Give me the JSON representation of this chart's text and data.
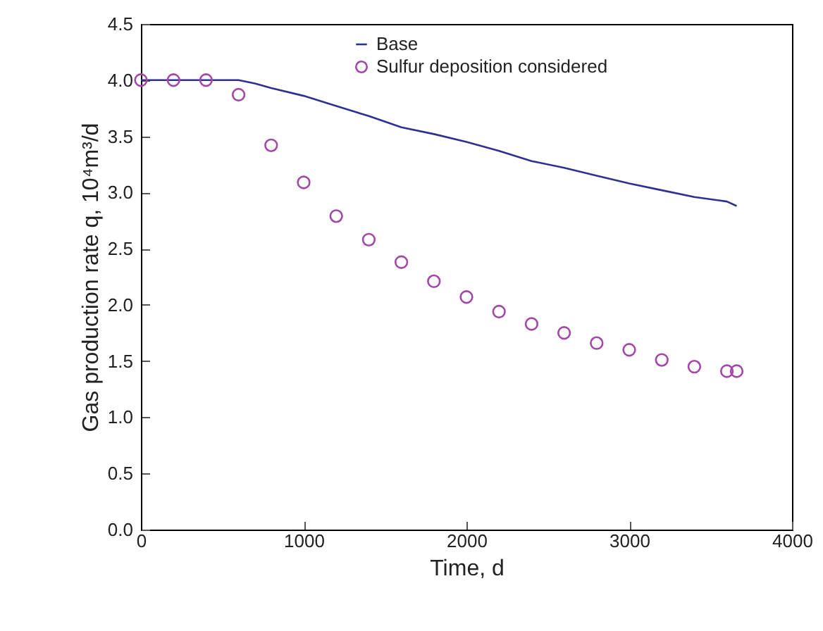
{
  "chart_data": {
    "type": "line",
    "xlabel": "Time, d",
    "ylabel": "Gas production rate q, 10⁴m³/d",
    "xlim": [
      0,
      4000
    ],
    "xticks": [
      0,
      1000,
      2000,
      3000,
      4000
    ],
    "ylim": [
      0,
      4.5
    ],
    "yticks": [
      {
        "value": 0,
        "label": "0.0"
      },
      {
        "value": 0.5,
        "label": "0.5"
      },
      {
        "value": 1,
        "label": "1.0"
      },
      {
        "value": 1.5,
        "label": "1.5"
      },
      {
        "value": 2,
        "label": "2.0"
      },
      {
        "value": 2.5,
        "label": "2.5"
      },
      {
        "value": 3,
        "label": "3.0"
      },
      {
        "value": 3.5,
        "label": "3.5"
      },
      {
        "value": 4,
        "label": "4.0"
      },
      {
        "value": 4.5,
        "label": "4.5"
      }
    ],
    "grid": false,
    "legend": "top",
    "series": [
      {
        "name": "Base",
        "type": "line",
        "color": "#2e3192",
        "line_style": "solid",
        "x": [
          0,
          200,
          400,
          600,
          700,
          800,
          1000,
          1200,
          1400,
          1600,
          1800,
          2000,
          2200,
          2400,
          2600,
          2800,
          3000,
          3200,
          3400,
          3550,
          3600,
          3660
        ],
        "values": [
          4.0,
          4.0,
          4.0,
          4.0,
          3.97,
          3.93,
          3.86,
          3.77,
          3.68,
          3.58,
          3.52,
          3.45,
          3.37,
          3.28,
          3.22,
          3.15,
          3.08,
          3.02,
          2.96,
          2.93,
          2.92,
          2.88
        ]
      },
      {
        "name": "Sulfur deposition considered",
        "type": "scatter",
        "marker": "circle",
        "color": "#a347a8",
        "x": [
          0,
          200,
          400,
          600,
          800,
          1000,
          1200,
          1400,
          1600,
          1800,
          2000,
          2200,
          2400,
          2600,
          2800,
          3000,
          3200,
          3400,
          3600,
          3660
        ],
        "values": [
          4.0,
          4.0,
          4.0,
          3.87,
          3.42,
          3.09,
          2.79,
          2.58,
          2.38,
          2.21,
          2.07,
          1.94,
          1.83,
          1.75,
          1.66,
          1.6,
          1.51,
          1.45,
          1.41,
          1.41
        ]
      }
    ]
  }
}
